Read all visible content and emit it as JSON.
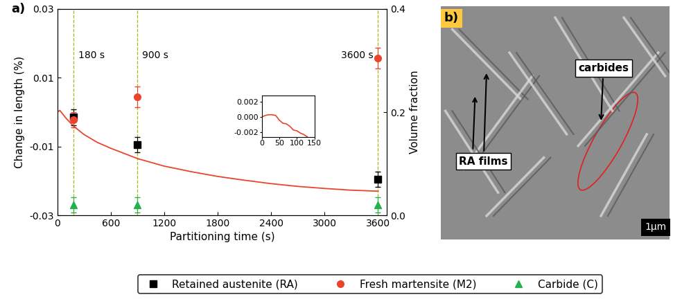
{
  "chart_data": [
    {
      "type": "line",
      "panel_label": "a)",
      "xlabel": "Partitioning time (s)",
      "ylabel": "Change in length (%)",
      "y2label": "Volume fraction",
      "xlim": [
        0,
        3700
      ],
      "xticks": [
        0,
        600,
        1200,
        1800,
        2400,
        3000,
        3600
      ],
      "ylim": [
        -0.03,
        0.03
      ],
      "yticks": [
        -0.03,
        -0.01,
        0.01,
        0.03
      ],
      "y2lim": [
        0,
        0.4
      ],
      "y2ticks": [
        {
          "value": 0,
          "label": "0.0"
        },
        0.2,
        0.4
      ],
      "vlines": {
        "x": [
          180,
          900,
          3600
        ],
        "labels": [
          "180 s",
          "900 s",
          "3600 s"
        ],
        "color": "#b3b31a",
        "line_style": "dashed"
      },
      "legend": "lower center",
      "series": [
        {
          "type": "line",
          "color": "#e8452c",
          "line_style": "solid",
          "x": [
            0,
            30,
            60,
            100,
            180,
            300,
            450,
            600,
            900,
            1200,
            1500,
            1800,
            2100,
            2400,
            2700,
            3000,
            3300,
            3600
          ],
          "values": [
            0.0,
            0.0005,
            -0.0005,
            -0.0018,
            -0.004,
            -0.0065,
            -0.0088,
            -0.0105,
            -0.0135,
            -0.0157,
            -0.0173,
            -0.0187,
            -0.0198,
            -0.0208,
            -0.0216,
            -0.0222,
            -0.0227,
            -0.023
          ]
        },
        {
          "name": "Retained austenite (RA)",
          "type": "scatter",
          "axis": "y2",
          "marker": "square",
          "color": "#000000",
          "x": [
            180,
            900,
            3600
          ],
          "values": [
            0.19,
            0.137,
            0.07
          ],
          "errors": [
            0.015,
            0.015,
            0.015
          ]
        },
        {
          "name": "Fresh martensite (M2)",
          "type": "scatter",
          "axis": "y2",
          "marker": "circle",
          "color": "#e8452c",
          "x": [
            180,
            900,
            3600
          ],
          "values": [
            0.185,
            0.23,
            0.305
          ],
          "errors": [
            0.015,
            0.02,
            0.02
          ]
        },
        {
          "name": "Carbide (C)",
          "type": "scatter",
          "axis": "y2",
          "marker": "triangle",
          "color": "#22b14c",
          "x": [
            180,
            900,
            3600
          ],
          "values": [
            0.02,
            0.02,
            0.02
          ],
          "errors": [
            0.015,
            0.015,
            0.015
          ]
        }
      ]
    },
    {
      "type": "line",
      "xlim": [
        0,
        150
      ],
      "xticks": [
        0,
        50,
        100,
        150
      ],
      "ylim": [
        -0.0026,
        0.0028
      ],
      "yticks": [
        -0.002,
        {
          "value": 0,
          "label": "0.000"
        },
        0.002
      ],
      "series": [
        {
          "type": "line",
          "color": "#e8452c",
          "line_style": "solid",
          "x": [
            0,
            10,
            20,
            30,
            40,
            50,
            60,
            70,
            80,
            90,
            100,
            110,
            120,
            130
          ],
          "values": [
            0.0,
            0.0002,
            0.0003,
            0.0003,
            0.0002,
            -0.0004,
            -0.0008,
            -0.0009,
            -0.0012,
            -0.0017,
            -0.0018,
            -0.0021,
            -0.0023,
            -0.0026
          ]
        }
      ]
    }
  ],
  "panel_b": {
    "label": "b)",
    "annotations": [
      "RA films",
      "carbides"
    ],
    "scale_bar": "1µm"
  }
}
